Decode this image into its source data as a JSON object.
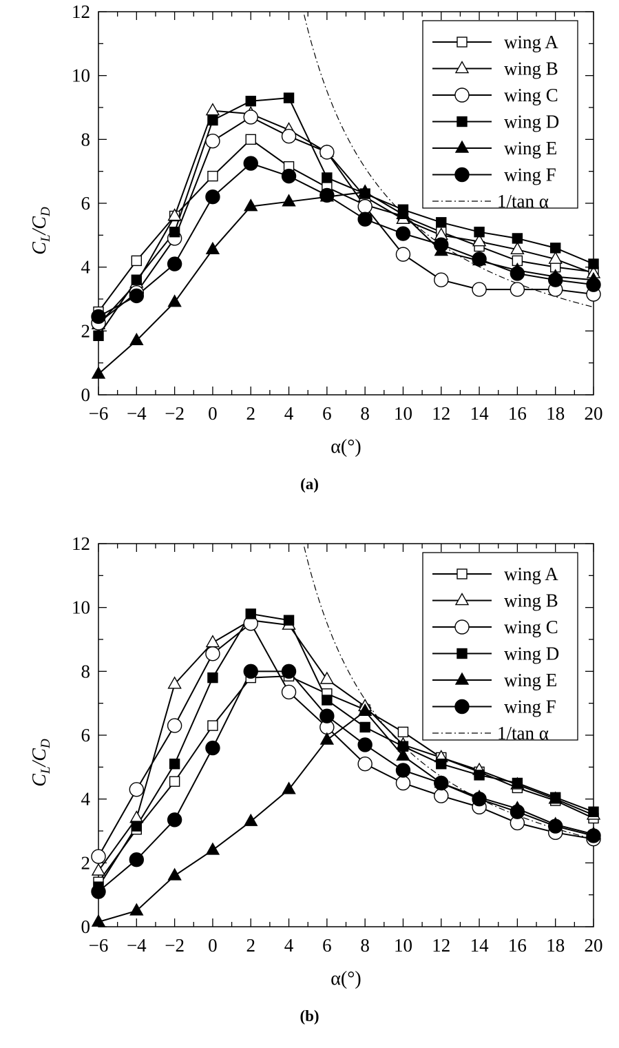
{
  "chart_data": [
    {
      "type": "line",
      "panel_label": "(a)",
      "xlabel": "α(°)",
      "ylabel": {
        "main": "C",
        "sub1": "L",
        "sep": "/C",
        "sub2": "D"
      },
      "xlim": [
        -6,
        20
      ],
      "ylim": [
        0,
        12
      ],
      "xticks": [
        -6,
        -4,
        -2,
        0,
        2,
        4,
        6,
        8,
        10,
        12,
        14,
        16,
        18,
        20
      ],
      "xtick_labels": [
        "−6",
        "−4",
        "−2",
        "0",
        "2",
        "4",
        "6",
        "8",
        "10",
        "12",
        "14",
        "16",
        "18",
        "20"
      ],
      "yticks": [
        0,
        2,
        4,
        6,
        8,
        10,
        12
      ],
      "ytick_labels": [
        "0",
        "2",
        "4",
        "6",
        "8",
        "10",
        "12"
      ],
      "legend_position": "top-right",
      "x": [
        -6,
        -4,
        -2,
        0,
        2,
        4,
        6,
        8,
        10,
        12,
        14,
        16,
        18,
        20
      ],
      "series": [
        {
          "name": "wing A",
          "marker": "square-open",
          "values": [
            2.6,
            4.2,
            5.6,
            6.85,
            8.0,
            7.15,
            6.5,
            5.95,
            5.6,
            5.1,
            4.65,
            4.2,
            4.0,
            3.85
          ]
        },
        {
          "name": "wing B",
          "marker": "triangle-open",
          "values": [
            2.2,
            3.5,
            5.6,
            8.9,
            8.8,
            8.3,
            7.6,
            6.2,
            5.5,
            5.0,
            4.8,
            4.55,
            4.25,
            3.8
          ]
        },
        {
          "name": "wing C",
          "marker": "circle-open",
          "values": [
            2.25,
            3.2,
            4.9,
            7.95,
            8.7,
            8.1,
            7.6,
            5.9,
            4.4,
            3.6,
            3.3,
            3.3,
            3.3,
            3.15
          ]
        },
        {
          "name": "wing D",
          "marker": "square-filled",
          "values": [
            1.85,
            3.6,
            5.1,
            8.6,
            9.2,
            9.3,
            6.8,
            6.3,
            5.8,
            5.4,
            5.1,
            4.9,
            4.6,
            4.1
          ]
        },
        {
          "name": "wing E",
          "marker": "triangle-filled",
          "values": [
            0.65,
            1.7,
            2.9,
            4.55,
            5.9,
            6.05,
            6.2,
            6.35,
            5.65,
            4.5,
            4.2,
            3.9,
            3.7,
            3.6
          ]
        },
        {
          "name": "wing F",
          "marker": "circle-filled",
          "values": [
            2.45,
            3.1,
            4.1,
            6.2,
            7.25,
            6.85,
            6.25,
            5.5,
            5.05,
            4.7,
            4.25,
            3.8,
            3.6,
            3.45
          ]
        }
      ],
      "reference_curve": {
        "name": "1/tan α",
        "style": "dash-dot",
        "formula": "1/tan(alpha)"
      }
    },
    {
      "type": "line",
      "panel_label": "(b)",
      "xlabel": "α(°)",
      "ylabel": {
        "main": "C",
        "sub1": "L",
        "sep": "/C",
        "sub2": "D"
      },
      "xlim": [
        -6,
        20
      ],
      "ylim": [
        0,
        12
      ],
      "xticks": [
        -6,
        -4,
        -2,
        0,
        2,
        4,
        6,
        8,
        10,
        12,
        14,
        16,
        18,
        20
      ],
      "xtick_labels": [
        "−6",
        "−4",
        "−2",
        "0",
        "2",
        "4",
        "6",
        "8",
        "10",
        "12",
        "14",
        "16",
        "18",
        "20"
      ],
      "yticks": [
        0,
        2,
        4,
        6,
        8,
        10,
        12
      ],
      "ytick_labels": [
        "0",
        "2",
        "4",
        "6",
        "8",
        "10",
        "12"
      ],
      "legend_position": "top-right",
      "x": [
        -6,
        -4,
        -2,
        0,
        2,
        4,
        6,
        8,
        10,
        12,
        14,
        16,
        18,
        20
      ],
      "series": [
        {
          "name": "wing A",
          "marker": "square-open",
          "values": [
            1.4,
            3.05,
            4.55,
            6.3,
            7.8,
            7.85,
            7.3,
            6.8,
            6.1,
            5.3,
            4.85,
            4.35,
            3.95,
            3.4
          ]
        },
        {
          "name": "wing B",
          "marker": "triangle-open",
          "values": [
            1.75,
            3.4,
            7.6,
            8.9,
            9.6,
            9.45,
            7.75,
            6.9,
            5.7,
            5.3,
            4.9,
            4.45,
            4.0,
            3.5
          ]
        },
        {
          "name": "wing C",
          "marker": "circle-open",
          "values": [
            2.2,
            4.3,
            6.3,
            8.55,
            9.5,
            7.35,
            6.25,
            5.1,
            4.5,
            4.1,
            3.75,
            3.25,
            2.95,
            2.75
          ]
        },
        {
          "name": "wing D",
          "marker": "square-filled",
          "values": [
            1.25,
            3.15,
            5.1,
            7.8,
            9.8,
            9.6,
            7.1,
            6.25,
            5.65,
            5.1,
            4.75,
            4.5,
            4.05,
            3.6
          ]
        },
        {
          "name": "wing E",
          "marker": "triangle-filled",
          "values": [
            0.15,
            0.5,
            1.6,
            2.4,
            3.3,
            4.3,
            5.85,
            6.75,
            5.35,
            4.5,
            4.05,
            3.7,
            3.2,
            2.9
          ]
        },
        {
          "name": "wing F",
          "marker": "circle-filled",
          "values": [
            1.1,
            2.1,
            3.35,
            5.6,
            8.0,
            8.0,
            6.6,
            5.7,
            4.9,
            4.5,
            4.0,
            3.6,
            3.15,
            2.85
          ]
        }
      ],
      "reference_curve": {
        "name": "1/tan α",
        "style": "dash-dot",
        "formula": "1/tan(alpha)"
      }
    }
  ]
}
